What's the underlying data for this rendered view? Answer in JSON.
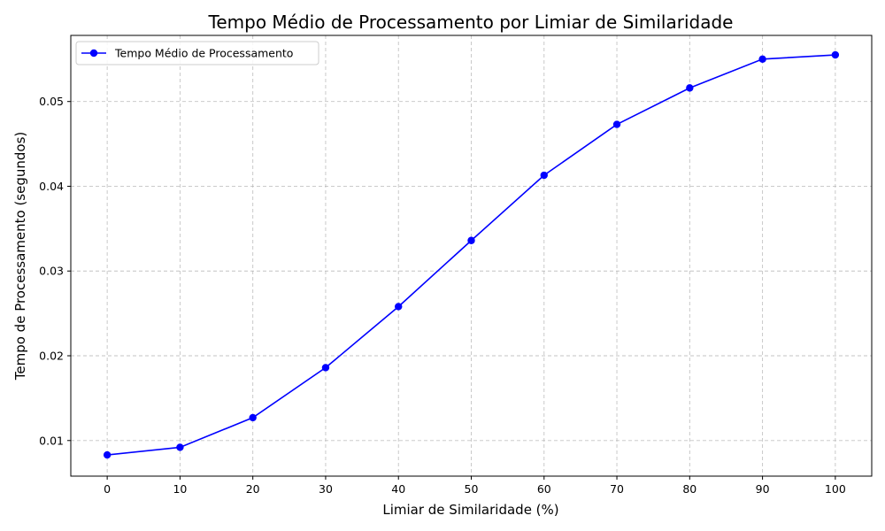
{
  "chart_data": {
    "type": "line",
    "title": "Tempo Médio de Processamento por Limiar de Similaridade",
    "xlabel": "Limiar de Similaridade (%)",
    "ylabel": "Tempo de Processamento (segundos)",
    "x": [
      0,
      10,
      20,
      30,
      40,
      50,
      60,
      70,
      80,
      90,
      100
    ],
    "xticks": [
      "0",
      "10",
      "20",
      "30",
      "40",
      "50",
      "60",
      "70",
      "80",
      "90",
      "100"
    ],
    "yticks": [
      "0.01",
      "0.02",
      "0.03",
      "0.04",
      "0.05"
    ],
    "ytick_values": [
      0.01,
      0.02,
      0.03,
      0.04,
      0.05
    ],
    "xlim": [
      -5,
      105
    ],
    "ylim": [
      0.0058,
      0.0578
    ],
    "grid": true,
    "legend_position": "top-left",
    "series": [
      {
        "name": "Tempo Médio de Processamento",
        "color": "#0000ff",
        "marker": "circle",
        "values": [
          0.0083,
          0.0092,
          0.0127,
          0.0186,
          0.0258,
          0.0336,
          0.0413,
          0.0473,
          0.0516,
          0.055,
          0.0555
        ]
      }
    ]
  }
}
